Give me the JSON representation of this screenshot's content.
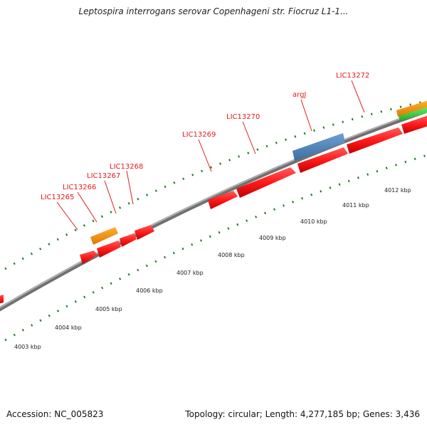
{
  "title": "Leptospira interrogans serovar Copenhageni str. Fiocruz L1-1...",
  "accession": "Accession: NC_005823",
  "summary": "Topology: circular; Length: 4,277,185 bp; Genes: 3,436",
  "colors": {
    "cds": "#ff1a1a",
    "rna": "#4a7fb5",
    "orange": "#f08c00",
    "green": "#33cc33",
    "backbone": "#8c8c8c",
    "tick": "#1f7f1f",
    "label": "#e31a1c"
  },
  "scale_labels": [
    "4003 kbp",
    "4004 kbp",
    "4005 kbp",
    "4006 kbp",
    "4007 kbp",
    "4008 kbp",
    "4009 kbp",
    "4010 kbp",
    "4011 kbp",
    "4012 kbp"
  ],
  "gene_labels": [
    {
      "name": "LIC13265"
    },
    {
      "name": "LIC13266"
    },
    {
      "name": "LIC13267"
    },
    {
      "name": "LIC13268"
    },
    {
      "name": "LIC13269"
    },
    {
      "name": "LIC13270"
    },
    {
      "name": "argJ"
    },
    {
      "name": "LIC13272"
    }
  ]
}
